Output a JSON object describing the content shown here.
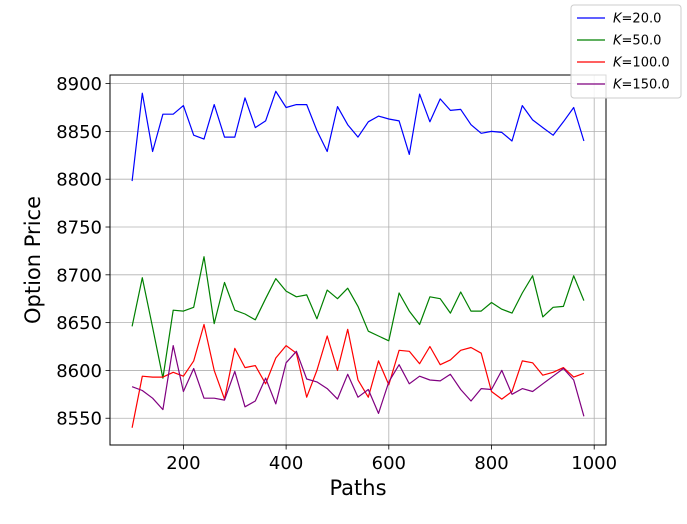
{
  "chart_data": {
    "type": "line",
    "xlabel": "Paths",
    "ylabel": "Option Price",
    "xlim": [
      57,
      1023
    ],
    "ylim": [
      8522,
      8909
    ],
    "xticks": [
      200,
      400,
      600,
      800,
      1000
    ],
    "yticks": [
      8550,
      8600,
      8650,
      8700,
      8750,
      8800,
      8850,
      8900
    ],
    "grid": true,
    "legend_position": "upper right, outside plot area",
    "x": [
      100,
      120,
      140,
      160,
      180,
      200,
      220,
      240,
      260,
      280,
      300,
      320,
      340,
      360,
      380,
      400,
      420,
      440,
      460,
      480,
      500,
      520,
      540,
      560,
      580,
      600,
      620,
      640,
      660,
      680,
      700,
      720,
      740,
      760,
      780,
      800,
      820,
      840,
      860,
      880,
      900,
      920,
      940,
      960,
      980
    ],
    "series": [
      {
        "name": "K=20.0",
        "name_parts": [
          "K",
          "=20.0"
        ],
        "color": "#0000ff",
        "values": [
          8798,
          8890,
          8829,
          8868,
          8868,
          8877,
          8846,
          8842,
          8878,
          8844,
          8844,
          8885,
          8854,
          8861,
          8892,
          8875,
          8878,
          8878,
          8851,
          8829,
          8876,
          8857,
          8844,
          8860,
          8866,
          8863,
          8861,
          8826,
          8889,
          8860,
          8884,
          8872,
          8873,
          8857,
          8848,
          8850,
          8849,
          8840,
          8877,
          8862,
          8854,
          8846,
          8860,
          8875,
          8840
        ]
      },
      {
        "name": "K=50.0",
        "name_parts": [
          "K",
          "=50.0"
        ],
        "color": "#008000",
        "values": [
          8646,
          8697,
          8645,
          8592,
          8663,
          8662,
          8666,
          8719,
          8649,
          8692,
          8663,
          8659,
          8653,
          8675,
          8696,
          8683,
          8677,
          8679,
          8654,
          8684,
          8675,
          8686,
          8667,
          8641,
          8636,
          8631,
          8681,
          8662,
          8648,
          8677,
          8675,
          8660,
          8682,
          8662,
          8662,
          8671,
          8664,
          8660,
          8681,
          8699,
          8656,
          8666,
          8667,
          8699,
          8673
        ]
      },
      {
        "name": "K=100.0",
        "name_parts": [
          "K",
          "=100.0"
        ],
        "color": "#ff0000",
        "values": [
          8540,
          8594,
          8593,
          8593,
          8598,
          8594,
          8610,
          8648,
          8600,
          8570,
          8623,
          8603,
          8605,
          8586,
          8613,
          8626,
          8618,
          8572,
          8600,
          8636,
          8600,
          8643,
          8590,
          8572,
          8610,
          8585,
          8621,
          8620,
          8607,
          8625,
          8606,
          8611,
          8621,
          8624,
          8618,
          8578,
          8570,
          8578,
          8610,
          8608,
          8595,
          8598,
          8603,
          8593,
          8597
        ]
      },
      {
        "name": "K=150.0",
        "name_parts": [
          "K",
          "=150.0"
        ],
        "color": "#800080",
        "values": [
          8583,
          8579,
          8571,
          8559,
          8626,
          8578,
          8602,
          8571,
          8571,
          8569,
          8599,
          8562,
          8568,
          8592,
          8565,
          8608,
          8620,
          8591,
          8588,
          8581,
          8570,
          8596,
          8572,
          8580,
          8555,
          8588,
          8606,
          8586,
          8594,
          8590,
          8589,
          8596,
          8580,
          8568,
          8581,
          8580,
          8600,
          8575,
          8581,
          8578,
          8586,
          8594,
          8602,
          8590,
          8552
        ]
      }
    ]
  }
}
